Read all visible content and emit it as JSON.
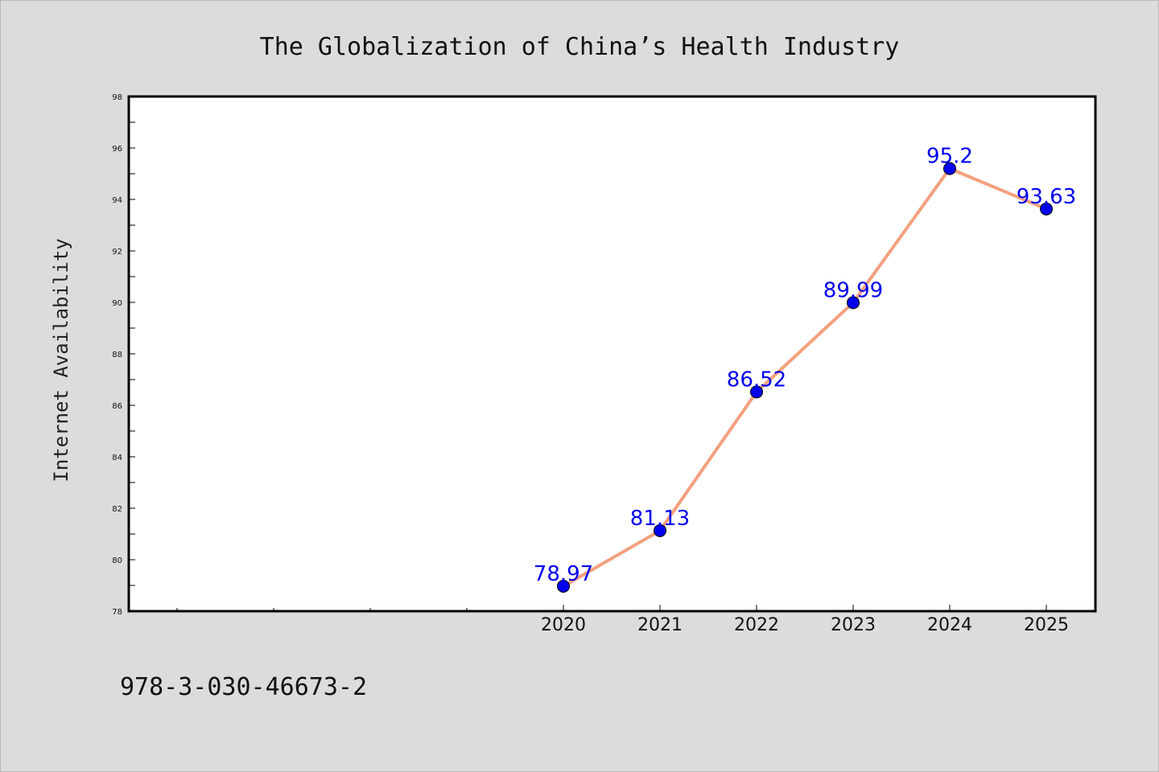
{
  "chart_data": {
    "type": "line",
    "title": "The Globalization of China’s Health Industry",
    "xlabel": "",
    "ylabel": "Internet Availability",
    "x": [
      "2020",
      "2021",
      "2022",
      "2023",
      "2024",
      "2025"
    ],
    "values": [
      78.97,
      81.13,
      86.52,
      89.99,
      95.2,
      93.63
    ],
    "data_labels": [
      "78.97",
      "81.13",
      "86.52",
      "89.99",
      "95.2",
      "93.63"
    ],
    "ylim": [
      78,
      98
    ],
    "yticks": [
      "78",
      "80",
      "82",
      "84",
      "86",
      "88",
      "90",
      "92",
      "94",
      "96",
      "98"
    ],
    "grid": false,
    "line_color": "#f4a07e",
    "marker_color": "#0000ee",
    "label_color": "#0000ee"
  },
  "footer": {
    "isbn": "978-3-030-46673-2"
  }
}
